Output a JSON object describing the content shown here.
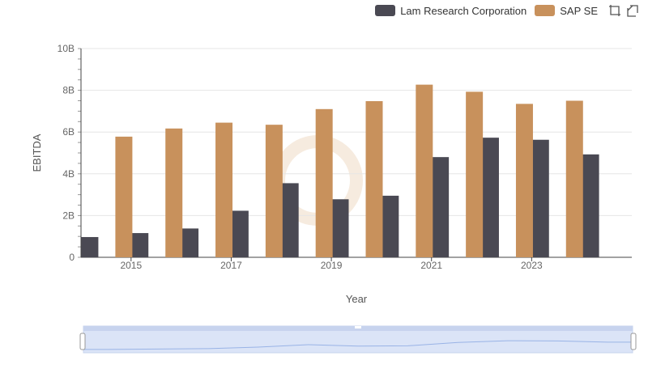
{
  "legend": {
    "items": [
      {
        "label": "Lam Research Corporation",
        "color": "#4a4953"
      },
      {
        "label": "SAP SE",
        "color": "#c8915c"
      }
    ]
  },
  "toolbar": {
    "icons": [
      "box-zoom-icon",
      "reset-icon"
    ]
  },
  "chart_data": {
    "type": "bar",
    "xlabel": "Year",
    "ylabel": "EBITDA",
    "categories": [
      "2014",
      "2015",
      "2016",
      "2017",
      "2018",
      "2019",
      "2020",
      "2021",
      "2022",
      "2023",
      "2024"
    ],
    "x_tick_labels": [
      "2015",
      "2017",
      "2019",
      "2021",
      "2023"
    ],
    "y_tick_labels": [
      "0",
      "2B",
      "4B",
      "6B",
      "8B",
      "10B"
    ],
    "ylim": [
      0,
      10
    ],
    "y_unit": "B",
    "grid": true,
    "legend_position": "top-right",
    "series": [
      {
        "name": "Lam Research Corporation",
        "color": "#4a4953",
        "values": [
          0.97,
          1.16,
          1.38,
          2.23,
          3.55,
          2.78,
          2.95,
          4.8,
          5.73,
          5.63,
          4.93
        ]
      },
      {
        "name": "SAP SE",
        "color": "#c8915c",
        "values": [
          5.78,
          6.17,
          6.45,
          6.35,
          7.1,
          7.48,
          8.27,
          7.93,
          7.35,
          7.5,
          null
        ]
      }
    ],
    "range_slider": {
      "visible": true,
      "line_color": "#99b3e6",
      "fill": "#dbe4f7"
    }
  }
}
